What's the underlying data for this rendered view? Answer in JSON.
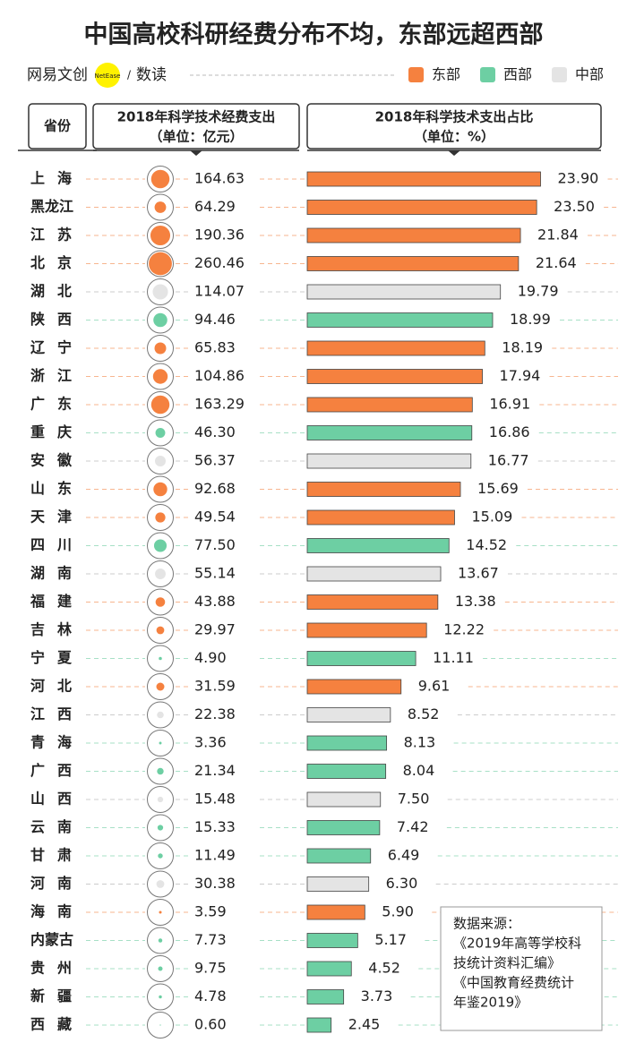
{
  "chart_data": {
    "type": "bar",
    "title": "中国高校科研经费分布不均，东部远超西部",
    "brand": "网易文创",
    "brand_badge": "NetEase",
    "brand_sub": "数读",
    "regions": [
      {
        "name": "东部",
        "color": "#f5813f"
      },
      {
        "name": "西部",
        "color": "#6dcfa3"
      },
      {
        "name": "中部",
        "color": "#e4e4e4"
      }
    ],
    "headers": {
      "province": "省份",
      "spending": [
        "2018年科学技术经费支出",
        "（单位：亿元）"
      ],
      "share": [
        "2018年科学技术支出占比",
        "（单位：%）"
      ]
    },
    "categories": [
      "上海",
      "黑龙江",
      "江苏",
      "北京",
      "湖北",
      "陕西",
      "辽宁",
      "浙江",
      "广东",
      "重庆",
      "安徽",
      "山东",
      "天津",
      "四川",
      "湖南",
      "福建",
      "吉林",
      "宁夏",
      "河北",
      "江西",
      "青海",
      "广西",
      "山西",
      "云南",
      "甘肃",
      "河南",
      "海南",
      "内蒙古",
      "贵州",
      "新疆",
      "西藏"
    ],
    "region": [
      "东部",
      "东部",
      "东部",
      "东部",
      "中部",
      "西部",
      "东部",
      "东部",
      "东部",
      "西部",
      "中部",
      "东部",
      "东部",
      "西部",
      "中部",
      "东部",
      "东部",
      "西部",
      "东部",
      "中部",
      "西部",
      "西部",
      "中部",
      "西部",
      "西部",
      "中部",
      "东部",
      "西部",
      "西部",
      "西部",
      "西部"
    ],
    "spending": [
      164.63,
      64.29,
      190.36,
      260.46,
      114.07,
      94.46,
      65.83,
      104.86,
      163.29,
      46.3,
      56.37,
      92.68,
      49.54,
      77.5,
      55.14,
      43.88,
      29.97,
      4.9,
      31.59,
      22.38,
      3.36,
      21.34,
      15.48,
      15.33,
      11.49,
      30.38,
      3.59,
      7.73,
      9.75,
      4.78,
      0.6
    ],
    "spending_labels": [
      "164.63",
      "64.29",
      "190.36",
      "260.46",
      "114.07",
      "94.46",
      "65.83",
      "104.86",
      "163.29",
      "46.30",
      "56.37",
      "92.68",
      "49.54",
      "77.50",
      "55.14",
      "43.88",
      "29.97",
      "4.90",
      "31.59",
      "22.38",
      "3.36",
      "21.34",
      "15.48",
      "15.33",
      "11.49",
      "30.38",
      "3.59",
      "7.73",
      "9.75",
      "4.78",
      "0.60"
    ],
    "values": [
      23.9,
      23.5,
      21.84,
      21.64,
      19.79,
      18.99,
      18.19,
      17.94,
      16.91,
      16.86,
      16.77,
      15.69,
      15.09,
      14.52,
      13.67,
      13.38,
      12.22,
      11.11,
      9.61,
      8.52,
      8.13,
      8.04,
      7.5,
      7.42,
      6.49,
      6.3,
      5.9,
      5.17,
      4.52,
      3.73,
      2.45
    ],
    "value_labels": [
      "23.90",
      "23.50",
      "21.84",
      "21.64",
      "19.79",
      "18.99",
      "18.19",
      "17.94",
      "16.91",
      "16.86",
      "16.77",
      "15.69",
      "15.09",
      "14.52",
      "13.67",
      "13.38",
      "12.22",
      "11.11",
      "9.61",
      "8.52",
      "8.13",
      "8.04",
      "7.50",
      "7.42",
      "6.49",
      "6.30",
      "5.90",
      "5.17",
      "4.52",
      "3.73",
      "2.45"
    ],
    "source": [
      "数据来源：",
      "《2019年高等学校科",
      "技统计资料汇编》",
      "《中国教育经费统计",
      "年鉴2019》"
    ]
  }
}
